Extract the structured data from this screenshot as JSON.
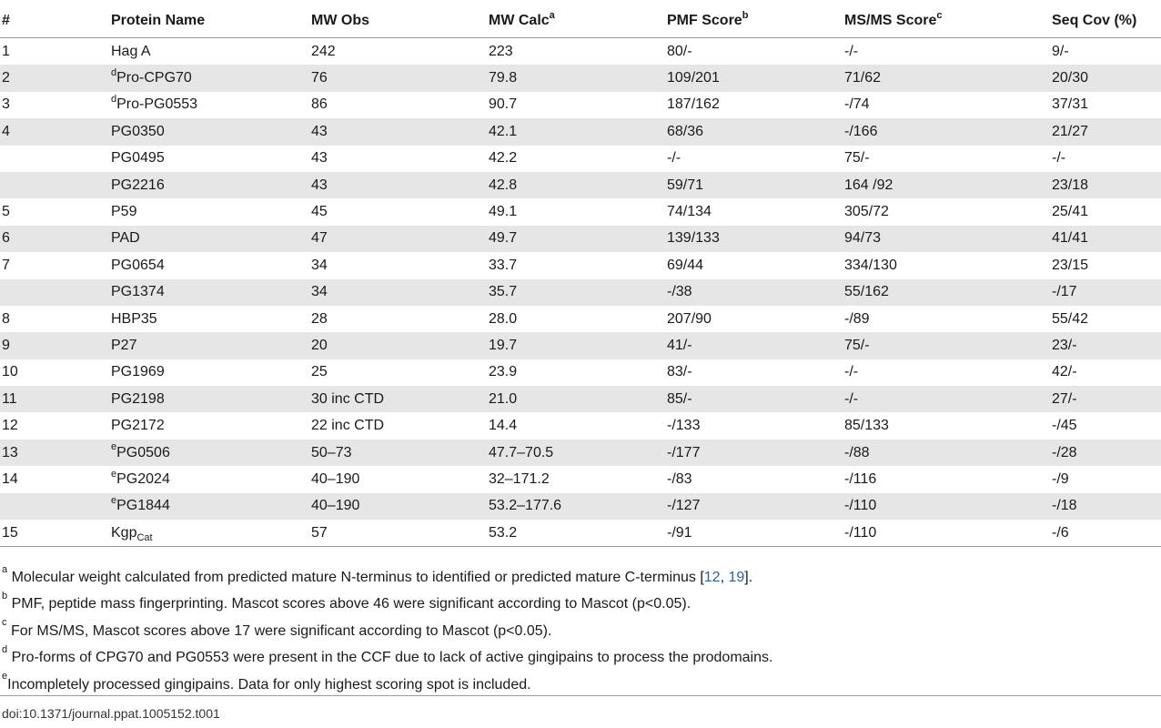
{
  "headers": {
    "num": "#",
    "name": "Protein Name",
    "mw_obs": "MW Obs",
    "mw_calc": "MW Calc",
    "mw_calc_sup": "a",
    "pmf": "PMF Score",
    "pmf_sup": "b",
    "msms": "MS/MS Score",
    "msms_sup": "c",
    "seqcov": "Seq Cov (%)"
  },
  "rows": [
    {
      "num": "1",
      "pre": "",
      "name": "Hag A",
      "sub": "",
      "mw_obs": "242",
      "mw_calc": "223",
      "pmf": "80/-",
      "msms": "-/-",
      "seqcov": "9/-"
    },
    {
      "num": "2",
      "pre": "d",
      "name": "Pro-CPG70",
      "sub": "",
      "mw_obs": "76",
      "mw_calc": "79.8",
      "pmf": "109/201",
      "msms": "71/62",
      "seqcov": "20/30"
    },
    {
      "num": "3",
      "pre": "d",
      "name": "Pro-PG0553",
      "sub": "",
      "mw_obs": "86",
      "mw_calc": "90.7",
      "pmf": "187/162",
      "msms": "-/74",
      "seqcov": "37/31"
    },
    {
      "num": "4",
      "pre": "",
      "name": "PG0350",
      "sub": "",
      "mw_obs": "43",
      "mw_calc": "42.1",
      "pmf": "68/36",
      "msms": "-/166",
      "seqcov": "21/27"
    },
    {
      "num": "",
      "pre": "",
      "name": "PG0495",
      "sub": "",
      "mw_obs": "43",
      "mw_calc": "42.2",
      "pmf": "-/-",
      "msms": "75/-",
      "seqcov": "-/-"
    },
    {
      "num": "",
      "pre": "",
      "name": "PG2216",
      "sub": "",
      "mw_obs": "43",
      "mw_calc": "42.8",
      "pmf": "59/71",
      "msms": "164 /92",
      "seqcov": "23/18"
    },
    {
      "num": "5",
      "pre": "",
      "name": "P59",
      "sub": "",
      "mw_obs": "45",
      "mw_calc": "49.1",
      "pmf": "74/134",
      "msms": "305/72",
      "seqcov": "25/41"
    },
    {
      "num": "6",
      "pre": "",
      "name": "PAD",
      "sub": "",
      "mw_obs": "47",
      "mw_calc": "49.7",
      "pmf": "139/133",
      "msms": "94/73",
      "seqcov": "41/41"
    },
    {
      "num": "7",
      "pre": "",
      "name": "PG0654",
      "sub": "",
      "mw_obs": "34",
      "mw_calc": "33.7",
      "pmf": "69/44",
      "msms": "334/130",
      "seqcov": "23/15"
    },
    {
      "num": "",
      "pre": "",
      "name": "PG1374",
      "sub": "",
      "mw_obs": "34",
      "mw_calc": "35.7",
      "pmf": "-/38",
      "msms": "55/162",
      "seqcov": "-/17"
    },
    {
      "num": "8",
      "pre": "",
      "name": "HBP35",
      "sub": "",
      "mw_obs": "28",
      "mw_calc": "28.0",
      "pmf": "207/90",
      "msms": "-/89",
      "seqcov": "55/42"
    },
    {
      "num": "9",
      "pre": "",
      "name": "P27",
      "sub": "",
      "mw_obs": "20",
      "mw_calc": "19.7",
      "pmf": "41/-",
      "msms": "75/-",
      "seqcov": "23/-"
    },
    {
      "num": "10",
      "pre": "",
      "name": "PG1969",
      "sub": "",
      "mw_obs": "25",
      "mw_calc": "23.9",
      "pmf": "83/-",
      "msms": "-/-",
      "seqcov": "42/-"
    },
    {
      "num": "11",
      "pre": "",
      "name": "PG2198",
      "sub": "",
      "mw_obs": "30 inc CTD",
      "mw_calc": "21.0",
      "pmf": "85/-",
      "msms": "-/-",
      "seqcov": "27/-"
    },
    {
      "num": "12",
      "pre": "",
      "name": "PG2172",
      "sub": "",
      "mw_obs": "22 inc CTD",
      "mw_calc": "14.4",
      "pmf": "-/133",
      "msms": "85/133",
      "seqcov": "-/45"
    },
    {
      "num": "13",
      "pre": "e",
      "name": "PG0506",
      "sub": "",
      "mw_obs": "50–73",
      "mw_calc": "47.7–70.5",
      "pmf": "-/177",
      "msms": "-/88",
      "seqcov": "-/28"
    },
    {
      "num": "14",
      "pre": "e",
      "name": "PG2024",
      "sub": "",
      "mw_obs": "40–190",
      "mw_calc": "32–171.2",
      "pmf": "-/83",
      "msms": "-/116",
      "seqcov": "-/9"
    },
    {
      "num": "",
      "pre": "e",
      "name": "PG1844",
      "sub": "",
      "mw_obs": "40–190",
      "mw_calc": "53.2–177.6",
      "pmf": "-/127",
      "msms": "-/110",
      "seqcov": "-/18"
    },
    {
      "num": "15",
      "pre": "",
      "name": "Kgp",
      "sub": "Cat",
      "mw_obs": "57",
      "mw_calc": "53.2",
      "pmf": "-/91",
      "msms": "-/110",
      "seqcov": "-/6"
    }
  ],
  "footnotes": {
    "a": {
      "sup": "a",
      "text_before": " Molecular weight calculated from predicted mature N-terminus to identified or predicted mature C-terminus [",
      "ref1": "12",
      "sep": ", ",
      "ref2": "19",
      "text_after": "]."
    },
    "b": {
      "sup": "b",
      "text": " PMF, peptide mass fingerprinting. Mascot scores above 46 were significant according to Mascot (p<0.05)."
    },
    "c": {
      "sup": "c",
      "text": " For MS/MS, Mascot scores above 17 were significant according to Mascot (p<0.05)."
    },
    "d": {
      "sup": "d",
      "text": " Pro-forms of CPG70 and PG0553 were present in the CCF due to lack of active gingipains to process the prodomains."
    },
    "e": {
      "sup": "e",
      "text": "Incompletely processed gingipains. Data for only highest scoring spot is included."
    }
  },
  "doi": "doi:10.1371/journal.ppat.1005152.t001",
  "colors": {
    "stripe": "#e6e6e6",
    "rule": "#9a9a9a",
    "link": "#2366b0"
  }
}
